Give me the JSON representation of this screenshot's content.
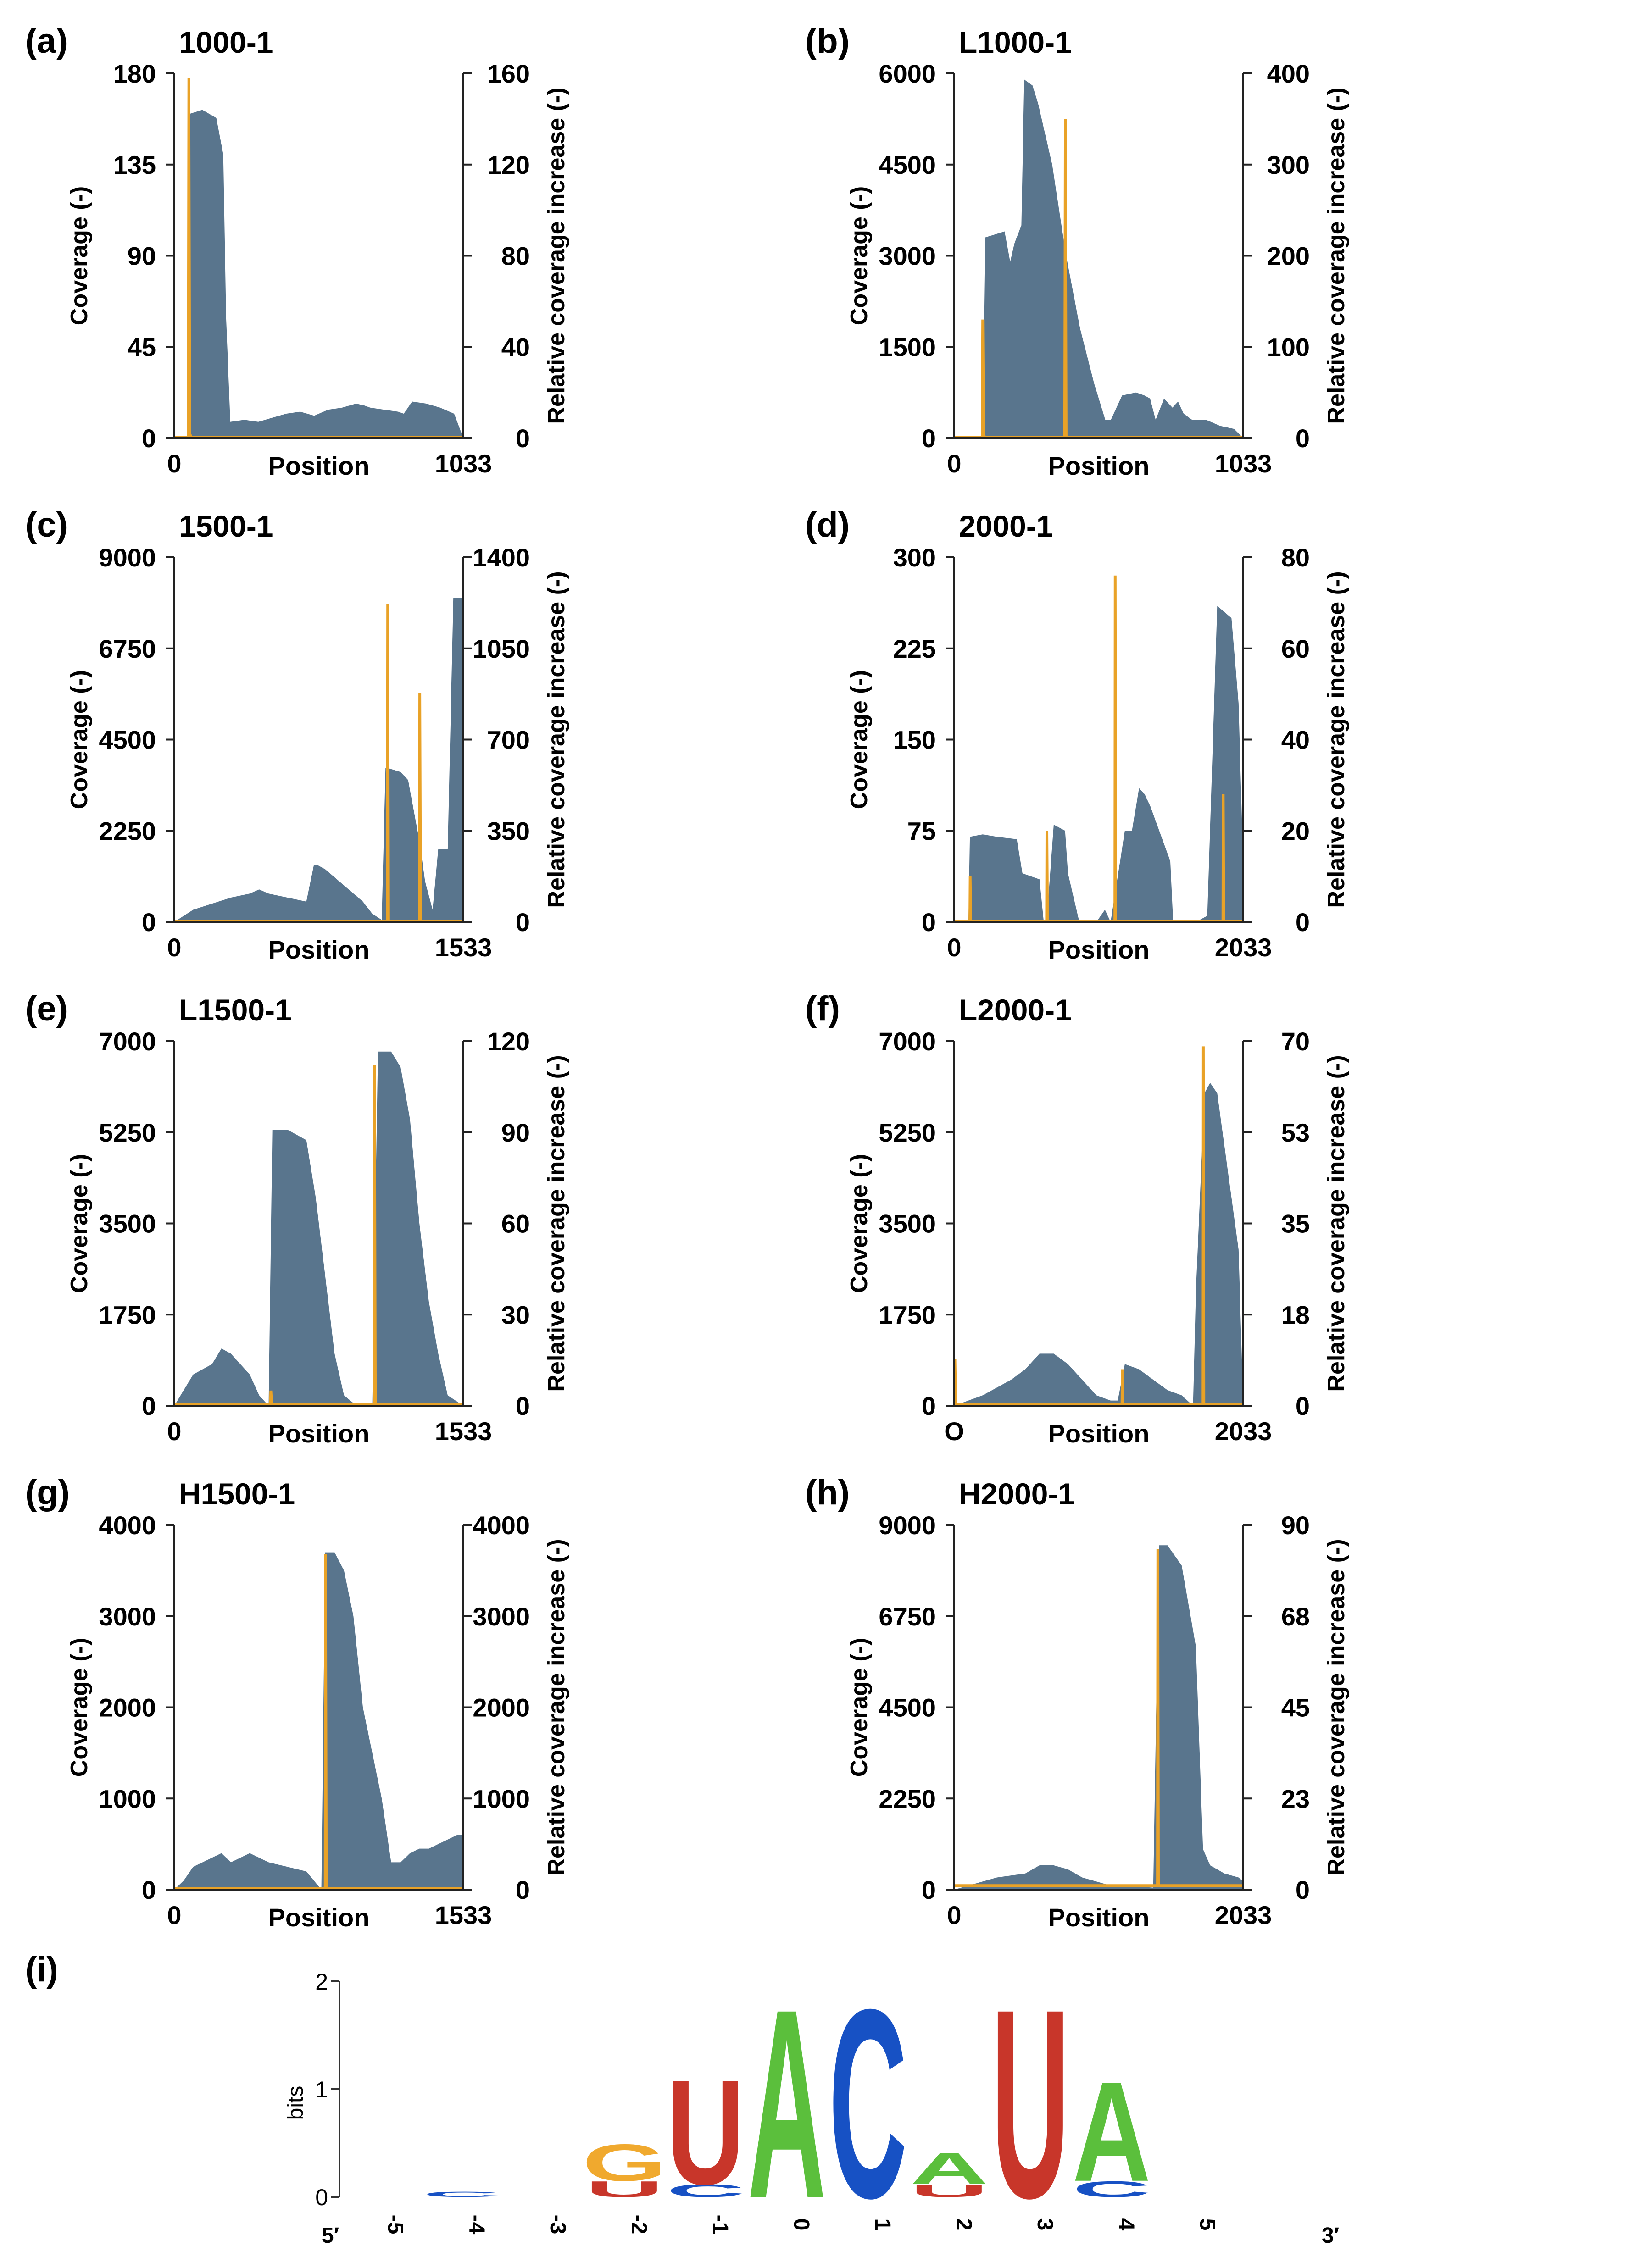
{
  "chart_data": [
    {
      "panel_letter": "(a)",
      "title": "1000-1",
      "type": "area",
      "xlabel": "Position",
      "ylabel": "Coverage (-)",
      "y2label": "Relative coverage increase (-)",
      "x_ticks": [
        "0",
        "1033"
      ],
      "xlim": [
        0,
        1033
      ],
      "y_ticks": [
        "0",
        "45",
        "90",
        "135",
        "180"
      ],
      "ylim": [
        0,
        180
      ],
      "y2_ticks": [
        "0",
        "40",
        "80",
        "120",
        "160"
      ],
      "y2lim": [
        0,
        160
      ],
      "coverage": {
        "x": [
          0,
          50,
          55,
          100,
          150,
          175,
          185,
          200,
          250,
          300,
          350,
          400,
          450,
          500,
          550,
          600,
          650,
          680,
          700,
          750,
          800,
          820,
          850,
          900,
          950,
          1000,
          1033
        ],
        "y": [
          0,
          0,
          160,
          162,
          158,
          140,
          60,
          8,
          9,
          8,
          10,
          12,
          13,
          11,
          14,
          15,
          17,
          16,
          15,
          14,
          13,
          12,
          18,
          17,
          15,
          12,
          0
        ]
      },
      "relative_increase": {
        "x": [
          0,
          50,
          52,
          55,
          60,
          1033
        ],
        "y": [
          0,
          0,
          158,
          2,
          0,
          0
        ]
      }
    },
    {
      "panel_letter": "(b)",
      "title": "L1000-1",
      "type": "area",
      "xlabel": "Position",
      "ylabel": "Coverage (-)",
      "y2label": "Relative coverage increase (-)",
      "x_ticks": [
        "0",
        "1033"
      ],
      "xlim": [
        0,
        1033
      ],
      "y_ticks": [
        "0",
        "1500",
        "3000",
        "4500",
        "6000"
      ],
      "ylim": [
        0,
        6000
      ],
      "y2_ticks": [
        "0",
        "100",
        "200",
        "300",
        "400"
      ],
      "y2lim": [
        0,
        400
      ],
      "coverage": {
        "x": [
          0,
          100,
          110,
          180,
          200,
          215,
          240,
          250,
          280,
          300,
          350,
          400,
          450,
          500,
          540,
          560,
          600,
          650,
          680,
          700,
          720,
          750,
          780,
          800,
          820,
          850,
          900,
          950,
          1000,
          1033
        ],
        "y": [
          0,
          0,
          3300,
          3400,
          2900,
          3200,
          3500,
          5900,
          5800,
          5500,
          4500,
          3000,
          1800,
          900,
          300,
          300,
          700,
          750,
          700,
          650,
          300,
          650,
          500,
          600,
          400,
          300,
          300,
          200,
          150,
          0
        ]
      },
      "relative_increase": {
        "x": [
          0,
          100,
          102,
          105,
          110,
          395,
          397,
          400,
          1033
        ],
        "y": [
          0,
          0,
          130,
          3,
          0,
          0,
          350,
          0,
          0
        ]
      }
    },
    {
      "panel_letter": "(c)",
      "title": "1500-1",
      "type": "area",
      "xlabel": "Position",
      "ylabel": "Coverage (-)",
      "y2label": "Relative coverage increase (-)",
      "x_ticks": [
        "0",
        "1533"
      ],
      "xlim": [
        0,
        1533
      ],
      "y_ticks": [
        "0",
        "2250",
        "4500",
        "6750",
        "9000"
      ],
      "ylim": [
        0,
        9000
      ],
      "y2_ticks": [
        "0",
        "350",
        "700",
        "1050",
        "1400"
      ],
      "y2lim": [
        0,
        1400
      ],
      "coverage": {
        "x": [
          0,
          50,
          100,
          200,
          300,
          400,
          450,
          500,
          600,
          700,
          740,
          760,
          800,
          850,
          900,
          1000,
          1050,
          1100,
          1120,
          1130,
          1200,
          1240,
          1260,
          1300,
          1330,
          1370,
          1400,
          1450,
          1480,
          1500,
          1533
        ],
        "y": [
          0,
          150,
          300,
          450,
          600,
          700,
          800,
          700,
          600,
          500,
          1400,
          1400,
          1300,
          1100,
          900,
          500,
          200,
          50,
          3800,
          3800,
          3700,
          3500,
          3000,
          2000,
          1000,
          300,
          1800,
          1800,
          8000,
          8000,
          8000
        ]
      },
      "relative_increase": {
        "x": [
          0,
          1130,
          1132,
          1136,
          1300,
          1302,
          1306,
          1533
        ],
        "y": [
          0,
          0,
          1220,
          0,
          0,
          880,
          0,
          0
        ]
      }
    },
    {
      "panel_letter": "(d)",
      "title": "2000-1",
      "type": "area",
      "xlabel": "Position",
      "ylabel": "Coverage (-)",
      "y2label": "Relative coverage increase (-)",
      "x_ticks": [
        "0",
        "2033"
      ],
      "xlim": [
        0,
        2033
      ],
      "y_ticks": [
        "0",
        "75",
        "150",
        "225",
        "300"
      ],
      "ylim": [
        0,
        300
      ],
      "y2_ticks": [
        "0",
        "20",
        "40",
        "60",
        "80"
      ],
      "y2lim": [
        0,
        80
      ],
      "coverage": {
        "x": [
          0,
          100,
          110,
          200,
          300,
          440,
          480,
          600,
          630,
          650,
          700,
          780,
          800,
          880,
          900,
          1000,
          1060,
          1100,
          1200,
          1250,
          1300,
          1340,
          1380,
          1520,
          1540,
          1700,
          1780,
          1850,
          1900,
          1950,
          2000,
          2033
        ],
        "y": [
          0,
          0,
          70,
          72,
          70,
          68,
          40,
          35,
          0,
          0,
          80,
          75,
          40,
          0,
          0,
          0,
          10,
          0,
          75,
          75,
          110,
          105,
          95,
          50,
          0,
          0,
          5,
          260,
          255,
          250,
          180,
          45
        ]
      },
      "relative_increase": {
        "x": [
          0,
          110,
          112,
          116,
          650,
          652,
          656,
          1130,
          1132,
          1136,
          1890,
          1892,
          1896,
          2033
        ],
        "y": [
          0,
          0,
          10,
          0,
          0,
          20,
          0,
          0,
          76,
          0,
          0,
          28,
          0,
          0
        ]
      }
    },
    {
      "panel_letter": "(e)",
      "title": "L1500-1",
      "type": "area",
      "xlabel": "Position",
      "ylabel": "Coverage (-)",
      "y2label": "Relative coverage increase (-)",
      "x_ticks": [
        "0",
        "1533"
      ],
      "xlim": [
        0,
        1533
      ],
      "y_ticks": [
        "0",
        "1750",
        "3500",
        "5250",
        "7000"
      ],
      "ylim": [
        0,
        7000
      ],
      "y2_ticks": [
        "0",
        "30",
        "60",
        "90",
        "120"
      ],
      "y2lim": [
        0,
        120
      ],
      "coverage": {
        "x": [
          0,
          50,
          100,
          200,
          250,
          300,
          400,
          450,
          500,
          520,
          600,
          700,
          750,
          800,
          850,
          900,
          950,
          1000,
          1050,
          1080,
          1150,
          1200,
          1250,
          1300,
          1350,
          1400,
          1450,
          1533
        ],
        "y": [
          0,
          300,
          600,
          800,
          1100,
          1000,
          600,
          200,
          0,
          5300,
          5300,
          5100,
          4000,
          2500,
          1000,
          200,
          50,
          0,
          0,
          6800,
          6800,
          6500,
          5500,
          3500,
          2000,
          1000,
          200,
          0
        ]
      },
      "relative_increase": {
        "x": [
          0,
          510,
          512,
          516,
          1060,
          1062,
          1066,
          1533
        ],
        "y": [
          0,
          0,
          5,
          0,
          0,
          112,
          0,
          0
        ]
      }
    },
    {
      "panel_letter": "(f)",
      "title": "L2000-1",
      "type": "area",
      "xlabel": "Position",
      "ylabel": "Coverage (-)",
      "y2label": "Relative coverage increase (-)",
      "x_ticks": [
        "O",
        "2033"
      ],
      "xlim": [
        0,
        2033
      ],
      "y_ticks": [
        "0",
        "1750",
        "3500",
        "5250",
        "7000"
      ],
      "ylim": [
        0,
        7000
      ],
      "y2_ticks": [
        "0",
        "18",
        "35",
        "53",
        "70"
      ],
      "y2lim": [
        0,
        70
      ],
      "coverage": {
        "x": [
          0,
          100,
          200,
          300,
          400,
          500,
          600,
          700,
          800,
          900,
          1000,
          1100,
          1150,
          1200,
          1300,
          1400,
          1500,
          1600,
          1680,
          1700,
          1760,
          1800,
          1850,
          1900,
          1950,
          2000,
          2033
        ],
        "y": [
          0,
          100,
          200,
          350,
          500,
          700,
          1000,
          1000,
          800,
          500,
          200,
          100,
          100,
          800,
          700,
          500,
          300,
          200,
          0,
          2200,
          6000,
          6200,
          6000,
          5000,
          4000,
          3000,
          0
        ]
      },
      "relative_increase": {
        "x": [
          0,
          5,
          10,
          1180,
          1182,
          1186,
          1750,
          1752,
          1756,
          2033
        ],
        "y": [
          0,
          9,
          0,
          0,
          7,
          0,
          0,
          69,
          0,
          0
        ]
      }
    },
    {
      "panel_letter": "(g)",
      "title": "H1500-1",
      "type": "area",
      "xlabel": "Position",
      "ylabel": "Coverage (-)",
      "y2label": "Relative coverage increase (-)",
      "x_ticks": [
        "0",
        "1533"
      ],
      "xlim": [
        0,
        1533
      ],
      "y_ticks": [
        "0",
        "1000",
        "2000",
        "3000",
        "4000"
      ],
      "ylim": [
        0,
        4000
      ],
      "y2_ticks": [
        "0",
        "1000",
        "2000",
        "3000",
        "4000"
      ],
      "y2lim": [
        0,
        4000
      ],
      "coverage": {
        "x": [
          0,
          50,
          100,
          200,
          250,
          300,
          400,
          500,
          600,
          700,
          780,
          800,
          850,
          900,
          950,
          1000,
          1050,
          1100,
          1150,
          1200,
          1250,
          1300,
          1350,
          1400,
          1450,
          1500,
          1533
        ],
        "y": [
          0,
          100,
          250,
          350,
          400,
          300,
          400,
          300,
          250,
          200,
          0,
          3700,
          3700,
          3500,
          3000,
          2000,
          1500,
          1000,
          300,
          300,
          400,
          450,
          450,
          500,
          550,
          600,
          600
        ]
      },
      "relative_increase": {
        "x": [
          0,
          800,
          802,
          806,
          1533
        ],
        "y": [
          0,
          0,
          3680,
          0,
          0
        ]
      }
    },
    {
      "panel_letter": "(h)",
      "title": "H2000-1",
      "type": "area",
      "xlabel": "Position",
      "ylabel": "Coverage (-)",
      "y2label": "Relative coverage increase (-)",
      "x_ticks": [
        "0",
        "2033"
      ],
      "xlim": [
        0,
        2033
      ],
      "y_ticks": [
        "0",
        "2250",
        "4500",
        "6750",
        "9000"
      ],
      "ylim": [
        0,
        9000
      ],
      "y2_ticks": [
        "0",
        "23",
        "45",
        "68",
        "90"
      ],
      "y2lim": [
        0,
        90
      ],
      "coverage": {
        "x": [
          0,
          100,
          200,
          300,
          400,
          500,
          600,
          700,
          800,
          900,
          1000,
          1100,
          1200,
          1400,
          1440,
          1500,
          1600,
          1650,
          1700,
          1750,
          1800,
          1900,
          2000,
          2033
        ],
        "y": [
          0,
          100,
          200,
          300,
          350,
          400,
          600,
          600,
          500,
          300,
          200,
          100,
          100,
          50,
          8500,
          8500,
          8000,
          7000,
          6000,
          1000,
          600,
          400,
          300,
          200
        ]
      },
      "relative_increase": {
        "x": [
          0,
          1430,
          1432,
          1436,
          2033
        ],
        "y": [
          1,
          1,
          84,
          1,
          1
        ]
      }
    },
    {
      "panel_letter": "(i)",
      "title": "",
      "type": "sequence_logo",
      "ylabel": "bits",
      "y_ticks": [
        "0",
        "1",
        "2"
      ],
      "ylim": [
        0,
        2
      ],
      "x_ticks": [
        "5′",
        "-5",
        "-4",
        "-3",
        "-2",
        "-1",
        "0",
        "1",
        "2",
        "3",
        "4",
        "5",
        "3′"
      ],
      "positions": [
        {
          "label": "-5",
          "letters": []
        },
        {
          "label": "-4",
          "letters": [
            {
              "char": "C",
              "bits": 0.05
            }
          ]
        },
        {
          "label": "-3",
          "letters": []
        },
        {
          "label": "-2",
          "letters": [
            {
              "char": "G",
              "bits": 0.35
            },
            {
              "char": "U",
              "bits": 0.15
            }
          ]
        },
        {
          "label": "-1",
          "letters": [
            {
              "char": "U",
              "bits": 1.0
            },
            {
              "char": "C",
              "bits": 0.12
            }
          ]
        },
        {
          "label": "0",
          "letters": [
            {
              "char": "A",
              "bits": 1.8
            }
          ]
        },
        {
          "label": "1",
          "letters": [
            {
              "char": "C",
              "bits": 1.8
            }
          ]
        },
        {
          "label": "2",
          "letters": [
            {
              "char": "A",
              "bits": 0.3
            },
            {
              "char": "U",
              "bits": 0.12
            }
          ]
        },
        {
          "label": "3",
          "letters": [
            {
              "char": "U",
              "bits": 1.8
            }
          ]
        },
        {
          "label": "4",
          "letters": [
            {
              "char": "A",
              "bits": 0.95
            },
            {
              "char": "C",
              "bits": 0.15
            }
          ]
        },
        {
          "label": "5",
          "letters": []
        }
      ]
    }
  ],
  "colors": {
    "coverage_fill": "#59758d",
    "relative_line": "#e9a227",
    "axis": "#222222",
    "logo_A": "#5bbf3c",
    "logo_C": "#1751c4",
    "logo_G": "#f0a92e",
    "logo_U": "#c8362a"
  }
}
